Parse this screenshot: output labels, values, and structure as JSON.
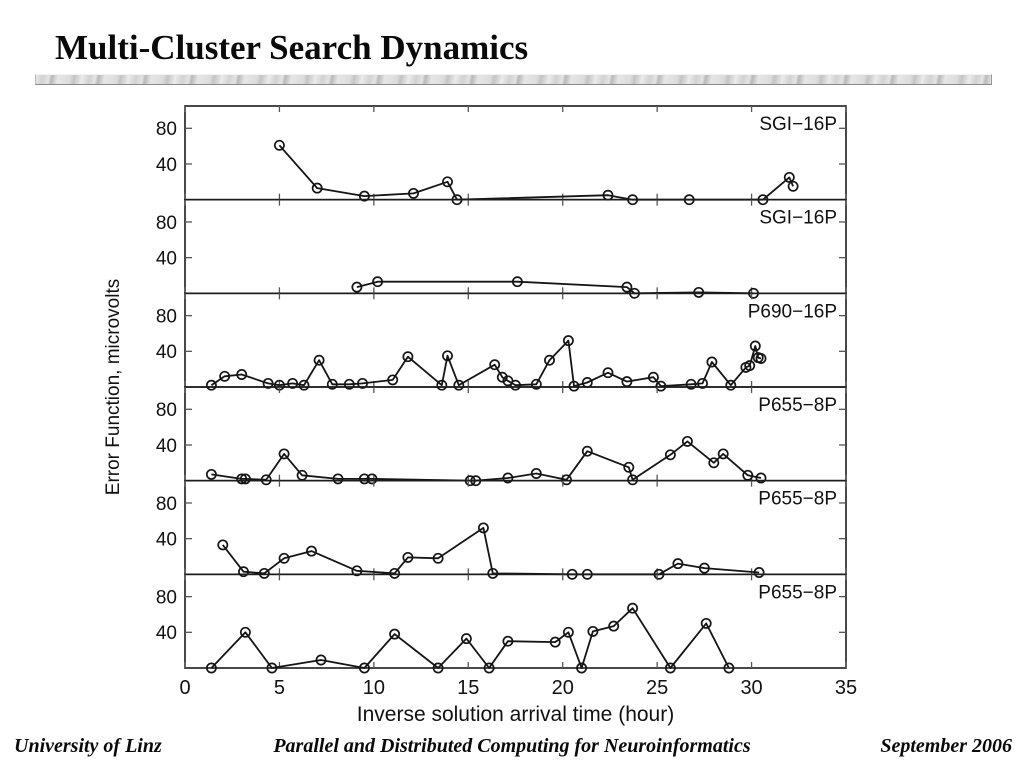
{
  "slide": {
    "title": "Multi-Cluster Search Dynamics",
    "footer": {
      "left": "University of Linz",
      "center": "Parallel and Distributed Computing for Neuroinformatics",
      "right": "September 2006"
    }
  },
  "chart_data": {
    "type": "line",
    "title": "",
    "xlabel": "Inverse solution arrival time (hour)",
    "ylabel": "Error Function, microvolts",
    "xlim": [
      0,
      35
    ],
    "ylim": [
      0,
      105
    ],
    "xticks": [
      0,
      5,
      10,
      15,
      20,
      25,
      30,
      35
    ],
    "yticks": [
      40,
      80
    ],
    "grid": false,
    "marker": "open-circle",
    "line_color": "#151515",
    "tick_color": "#555555",
    "legend_position": "panel-label-top-right",
    "panels": [
      {
        "label": "SGI−16P",
        "x": [
          5.0,
          7.0,
          9.5,
          12.1,
          13.9,
          14.4,
          22.4,
          23.7,
          26.7,
          30.6,
          32.0,
          32.2
        ],
        "y": [
          61,
          13,
          4,
          7,
          20,
          0,
          5,
          0,
          0,
          0,
          25,
          15
        ]
      },
      {
        "label": "SGI−16P",
        "x": [
          9.1,
          10.2,
          17.6,
          23.4,
          23.8,
          27.2,
          30.1
        ],
        "y": [
          7,
          13,
          13,
          7,
          0,
          1,
          0
        ]
      },
      {
        "label": "P690−16P",
        "x": [
          1.4,
          2.1,
          3.0,
          4.4,
          5.0,
          5.7,
          6.3,
          7.1,
          7.8,
          8.7,
          9.4,
          11.0,
          11.8,
          13.6,
          13.9,
          14.5,
          16.4,
          16.8,
          17.1,
          17.5,
          18.6,
          19.3,
          20.3,
          20.6,
          21.3,
          22.4,
          23.4,
          24.8,
          25.2,
          26.8,
          27.4,
          27.9,
          28.9,
          29.7,
          29.9,
          30.2,
          30.35,
          30.5
        ],
        "y": [
          2,
          12,
          14,
          4,
          2,
          4,
          2,
          30,
          3,
          3,
          4,
          8,
          34,
          2,
          35,
          2,
          25,
          11,
          7,
          2,
          3,
          30,
          52,
          1,
          5,
          16,
          6,
          11,
          1,
          3,
          4,
          28,
          2,
          22,
          24,
          46,
          33,
          32
        ]
      },
      {
        "label": "P655−8P",
        "x": [
          1.4,
          3.0,
          3.2,
          4.3,
          5.25,
          6.2,
          8.1,
          9.5,
          9.9,
          15.1,
          15.4,
          17.1,
          18.6,
          20.2,
          21.3,
          23.5,
          23.7,
          25.7,
          26.6,
          28.0,
          28.5,
          29.8,
          30.5
        ],
        "y": [
          7,
          2,
          2,
          1,
          30,
          6,
          2,
          2,
          2,
          0,
          0,
          3,
          8,
          1,
          33,
          15,
          1,
          29,
          44,
          20,
          30,
          6,
          3
        ]
      },
      {
        "label": "P655−8P",
        "x": [
          2.0,
          3.1,
          4.2,
          5.25,
          6.7,
          9.1,
          11.1,
          11.8,
          13.4,
          15.8,
          16.3,
          20.5,
          21.3,
          25.1,
          26.1,
          27.5,
          30.4
        ],
        "y": [
          33,
          3,
          1,
          18,
          26,
          4,
          1,
          19,
          18,
          52,
          1,
          0,
          0,
          0,
          12,
          7,
          2
        ]
      },
      {
        "label": "P655−8P",
        "x": [
          1.4,
          3.2,
          4.6,
          7.2,
          9.5,
          11.1,
          13.4,
          14.9,
          16.1,
          17.1,
          19.6,
          20.3,
          21.0,
          21.6,
          22.7,
          23.7,
          25.7,
          27.6,
          28.8
        ],
        "y": [
          0,
          40,
          0,
          9,
          0,
          38,
          0,
          33,
          0,
          30,
          29,
          40,
          0,
          41,
          47,
          67,
          0,
          50,
          0
        ]
      }
    ]
  }
}
